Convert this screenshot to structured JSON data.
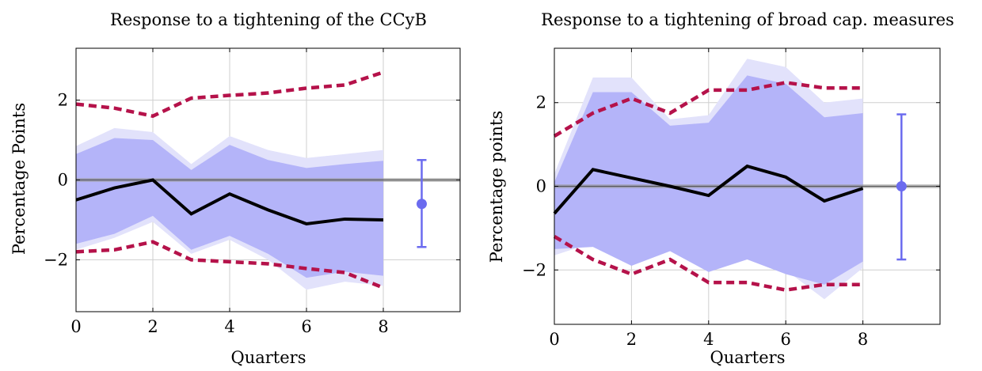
{
  "chart_data": [
    {
      "type": "line",
      "title": "Response to a tightening of the CCyB",
      "xlabel": "Quarters",
      "ylabel": "Percentage Points",
      "xlim": [
        0,
        10
      ],
      "ylim": [
        -3.3,
        3.3
      ],
      "xticks": [
        0,
        2,
        4,
        6,
        8
      ],
      "xtick_labels": [
        "0",
        "2",
        "4",
        "6",
        "8"
      ],
      "yticks": [
        -2,
        0,
        2
      ],
      "ytick_labels": [
        "−2",
        "0",
        "2"
      ],
      "grid": true,
      "zero_line": 0,
      "x": [
        0,
        1,
        2,
        3,
        4,
        5,
        6,
        7,
        8
      ],
      "point_estimate": [
        -0.5,
        -0.2,
        0.0,
        -0.85,
        -0.35,
        -0.75,
        -1.1,
        -0.98,
        -1.0
      ],
      "band_outer": {
        "upper": [
          0.85,
          1.3,
          1.2,
          0.4,
          1.1,
          0.75,
          0.55,
          0.65,
          0.75
        ],
        "lower": [
          -1.75,
          -1.45,
          -1.05,
          -1.85,
          -1.5,
          -2.0,
          -2.75,
          -2.55,
          -2.65
        ]
      },
      "band_inner": {
        "upper": [
          0.65,
          1.05,
          1.0,
          0.25,
          0.88,
          0.5,
          0.3,
          0.4,
          0.48
        ],
        "lower": [
          -1.6,
          -1.35,
          -0.9,
          -1.75,
          -1.4,
          -1.85,
          -2.45,
          -2.3,
          -2.4
        ]
      },
      "dashed_bounds": {
        "upper": [
          1.9,
          1.8,
          1.6,
          2.05,
          2.12,
          2.18,
          2.3,
          2.38,
          2.7
        ],
        "lower": [
          -1.8,
          -1.75,
          -1.55,
          -2.0,
          -2.05,
          -2.1,
          -2.22,
          -2.32,
          -2.7
        ]
      },
      "average_effect": {
        "x": 9,
        "value": -0.6,
        "ci": [
          -1.68,
          0.5
        ]
      },
      "colors": {
        "band_outer": "#e2e2fb",
        "band_inner": "#b4b4f9",
        "estimate": "#000000",
        "bounds": "#b5124a",
        "average": "#6b6bef",
        "zero": "#999999"
      }
    },
    {
      "type": "line",
      "title": "Response to a tightening of broad cap. measures",
      "xlabel": "Quarters",
      "ylabel": "Percentage points",
      "xlim": [
        0,
        10
      ],
      "ylim": [
        -3.3,
        3.3
      ],
      "xticks": [
        0,
        2,
        4,
        6,
        8
      ],
      "xtick_labels": [
        "0",
        "2",
        "4",
        "6",
        "8"
      ],
      "yticks": [
        -2,
        0,
        2
      ],
      "ytick_labels": [
        "−2",
        "0",
        "2"
      ],
      "grid": true,
      "zero_line": 0,
      "x": [
        0,
        1,
        2,
        3,
        4,
        5,
        6,
        7,
        8
      ],
      "point_estimate": [
        -0.65,
        0.4,
        0.2,
        0.0,
        -0.22,
        0.48,
        0.22,
        -0.35,
        -0.05
      ],
      "band_outer": {
        "upper": [
          0.3,
          2.6,
          2.6,
          1.6,
          1.7,
          3.05,
          2.85,
          2.0,
          2.1
        ],
        "lower": [
          -1.65,
          -1.35,
          -1.8,
          -1.3,
          -1.95,
          -1.55,
          -2.0,
          -2.7,
          -1.95
        ]
      },
      "band_inner": {
        "upper": [
          0.1,
          2.25,
          2.25,
          1.45,
          1.52,
          2.65,
          2.45,
          1.65,
          1.75
        ],
        "lower": [
          -1.5,
          -1.45,
          -1.9,
          -1.55,
          -2.05,
          -1.75,
          -2.1,
          -2.35,
          -1.8
        ]
      },
      "dashed_bounds": {
        "upper": [
          1.2,
          1.75,
          2.1,
          1.75,
          2.3,
          2.3,
          2.48,
          2.35,
          2.35
        ],
        "lower": [
          -1.2,
          -1.75,
          -2.1,
          -1.75,
          -2.3,
          -2.3,
          -2.48,
          -2.35,
          -2.35
        ]
      },
      "average_effect": {
        "x": 9,
        "value": 0.0,
        "ci": [
          -1.75,
          1.72
        ]
      },
      "colors": {
        "band_outer": "#e2e2fb",
        "band_inner": "#b4b4f9",
        "estimate": "#000000",
        "bounds": "#b5124a",
        "average": "#6b6bef",
        "zero": "#999999"
      }
    }
  ]
}
